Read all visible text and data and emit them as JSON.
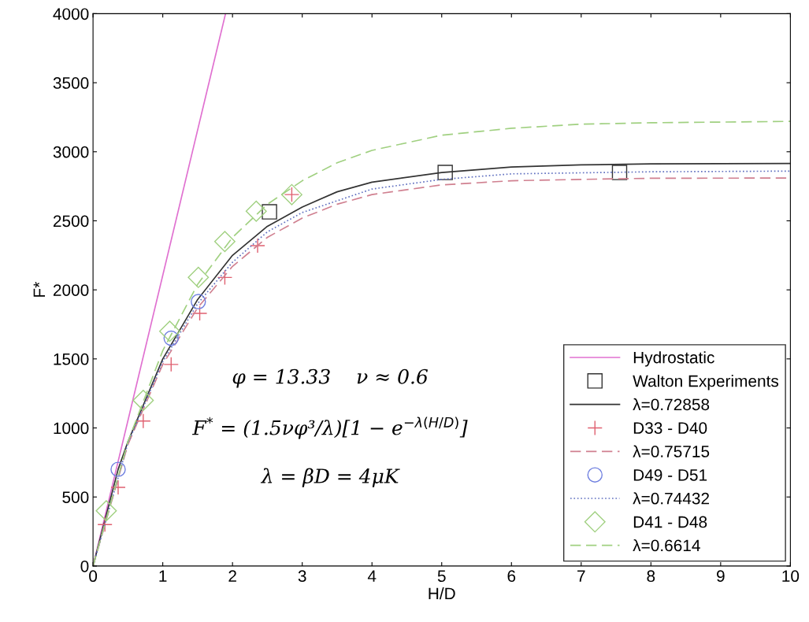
{
  "chart_data": {
    "type": "line",
    "xlabel": "H/D",
    "ylabel": "F*",
    "xlim": [
      0,
      10
    ],
    "ylim": [
      0,
      4000
    ],
    "xticks": [
      0,
      1,
      2,
      3,
      4,
      5,
      6,
      7,
      8,
      9,
      10
    ],
    "yticks": [
      0,
      500,
      1000,
      1500,
      2000,
      2500,
      3000,
      3500,
      4000
    ],
    "grid": false,
    "legend": "bottom right",
    "annotations": [
      "φ = 13.33    ν ≈ 0.6",
      "F$^{*}$ = (1.5νφ³/λ)[1 − e$^{−λ(H/D)}$]",
      "λ = βD = 4μK"
    ],
    "series": [
      {
        "name": "Hydrostatic",
        "color": "#e070d0",
        "line_style": "solid",
        "marker": "none",
        "x": [
          0,
          1.9
        ],
        "values": [
          0,
          4000
        ]
      },
      {
        "name": "Walton Experiments",
        "type": "scatter",
        "color": "#333333",
        "marker": "square",
        "x": [
          2.53,
          5.05,
          7.55
        ],
        "values": [
          2565,
          2850,
          2850
        ]
      },
      {
        "name": "λ=0.72858",
        "color": "#333333",
        "line_style": "solid",
        "marker": "none",
        "x": [
          0,
          0.36,
          0.5,
          1,
          1.5,
          2,
          2.5,
          3,
          3.5,
          4,
          5,
          6,
          7,
          8,
          10
        ],
        "values": [
          0,
          700,
          900,
          1500,
          1930,
          2250,
          2460,
          2600,
          2710,
          2780,
          2850,
          2890,
          2905,
          2912,
          2915
        ]
      },
      {
        "name": "D33 - D40",
        "type": "scatter",
        "color": "#e06070",
        "marker": "cross",
        "x": [
          0.17,
          0.36,
          0.72,
          1.12,
          1.53,
          1.89,
          2.36,
          2.85
        ],
        "values": [
          300,
          570,
          1050,
          1460,
          1830,
          2090,
          2320,
          2690
        ]
      },
      {
        "name": "λ=0.75715",
        "color": "#d08090",
        "line_style": "dashed",
        "marker": "none",
        "x": [
          0,
          0.5,
          1,
          1.5,
          2,
          2.5,
          3,
          3.5,
          4,
          5,
          6,
          7,
          8,
          10
        ],
        "values": [
          0,
          880,
          1460,
          1870,
          2170,
          2380,
          2520,
          2620,
          2690,
          2760,
          2790,
          2800,
          2808,
          2810
        ]
      },
      {
        "name": "D49 - D51",
        "type": "scatter",
        "color": "#7080e0",
        "marker": "circle",
        "x": [
          0.36,
          1.12,
          1.51
        ],
        "values": [
          700,
          1650,
          1915
        ]
      },
      {
        "name": "λ=0.74432",
        "color": "#6070c0",
        "line_style": "dotted",
        "marker": "none",
        "x": [
          0,
          0.5,
          1,
          1.5,
          2,
          2.5,
          3,
          4,
          5,
          6,
          8,
          10
        ],
        "values": [
          0,
          890,
          1480,
          1900,
          2200,
          2420,
          2560,
          2730,
          2800,
          2840,
          2855,
          2860
        ]
      },
      {
        "name": "D41 - D48",
        "type": "scatter",
        "color": "#a0d080",
        "marker": "diamond",
        "x": [
          0.19,
          0.72,
          1.1,
          1.51,
          1.89,
          2.34,
          2.85
        ],
        "values": [
          400,
          1200,
          1700,
          2090,
          2350,
          2570,
          2690
        ]
      },
      {
        "name": "λ=0.6614",
        "color": "#a0d080",
        "line_style": "dashed",
        "marker": "none",
        "x": [
          0,
          0.5,
          1,
          1.5,
          2,
          2.5,
          3,
          3.5,
          4,
          5,
          6,
          7,
          8,
          10
        ],
        "values": [
          0,
          900,
          1560,
          2040,
          2380,
          2620,
          2790,
          2920,
          3010,
          3120,
          3170,
          3200,
          3210,
          3220
        ]
      }
    ]
  }
}
